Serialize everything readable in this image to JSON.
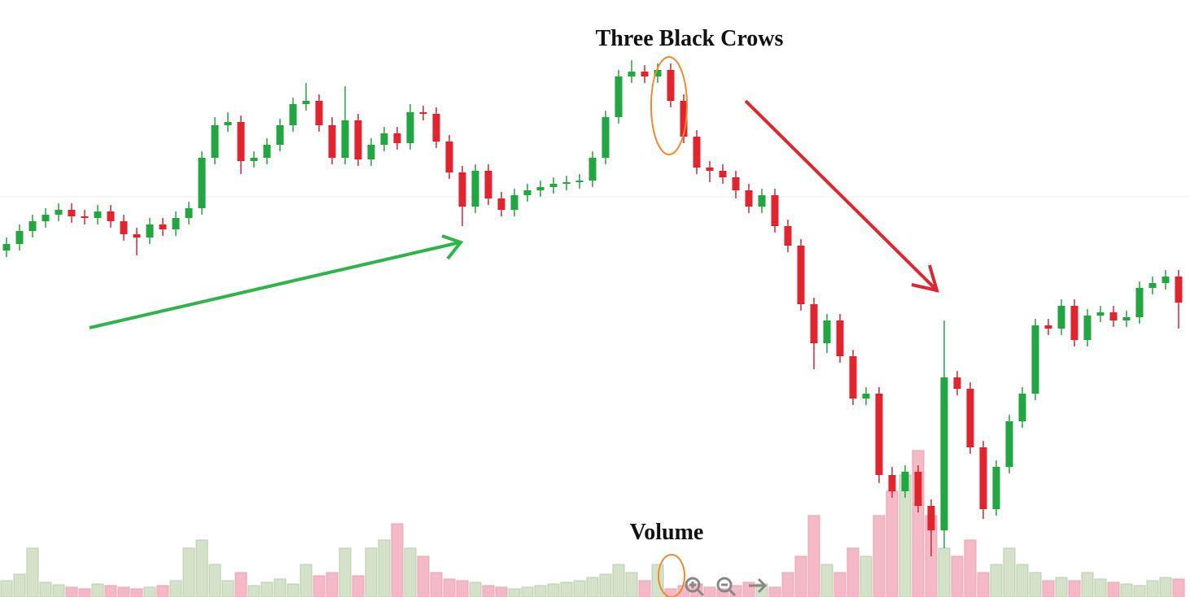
{
  "chart_data": {
    "type": "candlestick",
    "title": "Three Black Crows",
    "volume_label": "Volume",
    "up_color": "#21a73f",
    "down_color": "#e2252d",
    "up_volume_color": "#d3e2c9",
    "down_volume_color": "#f4b9c6",
    "open": [
      426,
      434,
      450,
      462,
      470,
      476,
      468,
      466,
      474,
      462,
      446,
      442,
      458,
      452,
      466,
      478,
      540,
      580,
      584,
      536,
      540,
      556,
      580,
      606,
      610,
      580,
      540,
      586,
      538,
      556,
      570,
      558,
      596,
      594,
      560,
      522,
      480,
      524,
      490,
      476,
      494,
      500,
      504,
      508,
      510,
      512,
      540,
      590,
      640,
      646,
      640,
      648,
      610,
      566,
      528,
      524,
      516,
      500,
      480,
      494,
      456,
      432,
      360,
      312,
      340,
      296,
      244,
      250,
      150,
      130,
      154,
      112,
      82,
      270,
      256,
      184,
      108,
      160,
      216,
      250,
      334,
      330,
      358,
      316,
      346,
      350,
      340,
      344,
      380,
      386,
      394
    ],
    "high": [
      442,
      458,
      470,
      478,
      484,
      484,
      476,
      482,
      482,
      470,
      454,
      466,
      466,
      474,
      486,
      548,
      590,
      596,
      592,
      548,
      564,
      588,
      614,
      632,
      618,
      590,
      628,
      594,
      564,
      578,
      578,
      606,
      604,
      602,
      568,
      530,
      532,
      532,
      498,
      502,
      508,
      512,
      516,
      518,
      520,
      548,
      598,
      648,
      660,
      654,
      656,
      656,
      618,
      574,
      536,
      532,
      524,
      508,
      502,
      502,
      464,
      440,
      368,
      348,
      348,
      304,
      258,
      258,
      160,
      162,
      162,
      120,
      340,
      278,
      264,
      192,
      168,
      224,
      258,
      342,
      342,
      366,
      366,
      354,
      358,
      358,
      352,
      388,
      394,
      402,
      402
    ],
    "low": [
      418,
      426,
      442,
      454,
      462,
      460,
      458,
      458,
      454,
      438,
      420,
      434,
      444,
      444,
      458,
      470,
      532,
      572,
      520,
      528,
      532,
      548,
      572,
      598,
      572,
      532,
      532,
      530,
      530,
      548,
      550,
      550,
      586,
      552,
      514,
      456,
      472,
      482,
      468,
      468,
      486,
      492,
      496,
      500,
      502,
      504,
      532,
      582,
      632,
      632,
      632,
      602,
      558,
      520,
      510,
      508,
      490,
      472,
      472,
      448,
      424,
      352,
      280,
      300,
      288,
      236,
      236,
      140,
      122,
      122,
      104,
      50,
      60,
      248,
      176,
      96,
      100,
      152,
      208,
      242,
      322,
      322,
      308,
      308,
      338,
      332,
      332,
      336,
      372,
      378,
      330
    ],
    "close": [
      434,
      450,
      462,
      470,
      476,
      468,
      466,
      474,
      462,
      446,
      442,
      458,
      452,
      466,
      478,
      540,
      580,
      584,
      536,
      540,
      556,
      580,
      606,
      610,
      580,
      540,
      586,
      538,
      556,
      570,
      558,
      596,
      594,
      560,
      522,
      480,
      524,
      490,
      476,
      494,
      500,
      504,
      508,
      510,
      512,
      540,
      590,
      640,
      646,
      640,
      648,
      610,
      566,
      528,
      524,
      516,
      500,
      480,
      494,
      456,
      432,
      360,
      312,
      340,
      296,
      244,
      250,
      150,
      130,
      154,
      112,
      82,
      270,
      256,
      184,
      108,
      160,
      216,
      250,
      334,
      330,
      358,
      316,
      346,
      350,
      340,
      344,
      380,
      386,
      394,
      362
    ],
    "volume": [
      20,
      28,
      60,
      18,
      15,
      12,
      10,
      16,
      14,
      12,
      10,
      12,
      14,
      20,
      60,
      70,
      40,
      20,
      30,
      14,
      18,
      22,
      16,
      40,
      26,
      30,
      60,
      26,
      60,
      70,
      90,
      60,
      50,
      30,
      22,
      20,
      18,
      14,
      12,
      10,
      12,
      14,
      16,
      18,
      20,
      24,
      28,
      40,
      30,
      20,
      40,
      10,
      14,
      16,
      12,
      10,
      14,
      18,
      16,
      12,
      30,
      50,
      100,
      40,
      30,
      60,
      50,
      100,
      130,
      150,
      180,
      100,
      60,
      50,
      70,
      30,
      40,
      60,
      40,
      30,
      20,
      24,
      20,
      30,
      22,
      18,
      16,
      14,
      20,
      24,
      22
    ]
  }
}
